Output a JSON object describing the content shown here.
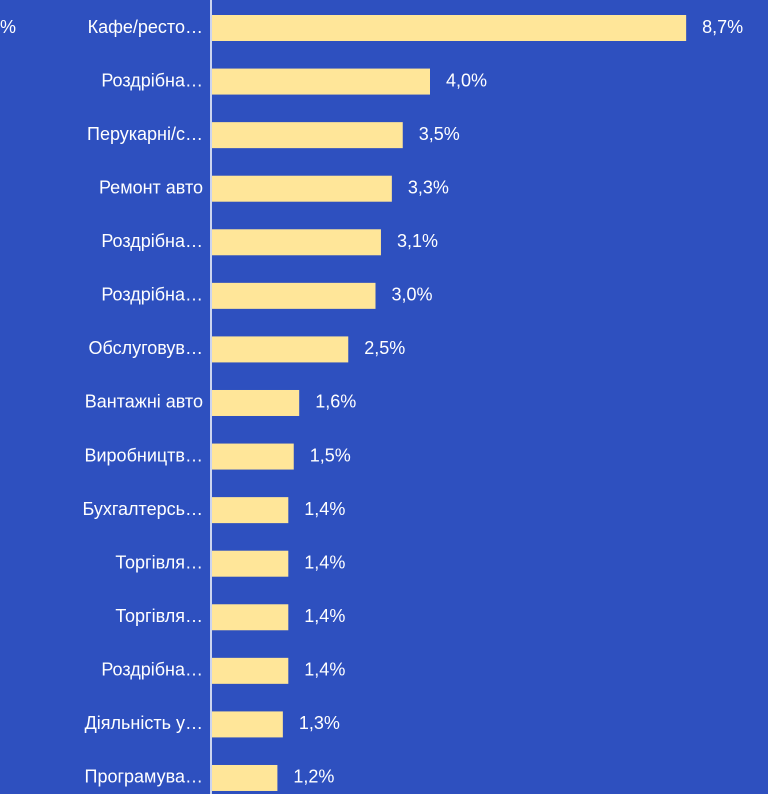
{
  "chart_data": {
    "type": "bar",
    "orientation": "horizontal",
    "annotations": [
      "%"
    ],
    "categories": [
      "Кафе/ресто…",
      "Роздрібна…",
      "Перукарні/с…",
      "Ремонт авто",
      "Роздрібна…",
      "Роздрібна…",
      "Обслуговув…",
      "Вантажні авто",
      "Виробництв…",
      "Бухгалтерсь…",
      "Торгівля…",
      "Торгівля…",
      "Роздрібна…",
      "Діяльність у…",
      "Програмува…"
    ],
    "values": [
      8.7,
      4.0,
      3.5,
      3.3,
      3.1,
      3.0,
      2.5,
      1.6,
      1.5,
      1.4,
      1.4,
      1.4,
      1.4,
      1.3,
      1.2
    ],
    "value_labels": [
      "8,7%",
      "4,0%",
      "3,5%",
      "3,3%",
      "3,1%",
      "3,0%",
      "2,5%",
      "1,6%",
      "1,5%",
      "1,4%",
      "1,4%",
      "1,4%",
      "1,4%",
      "1,3%",
      "1,2%"
    ],
    "color": "#ffe699"
  }
}
